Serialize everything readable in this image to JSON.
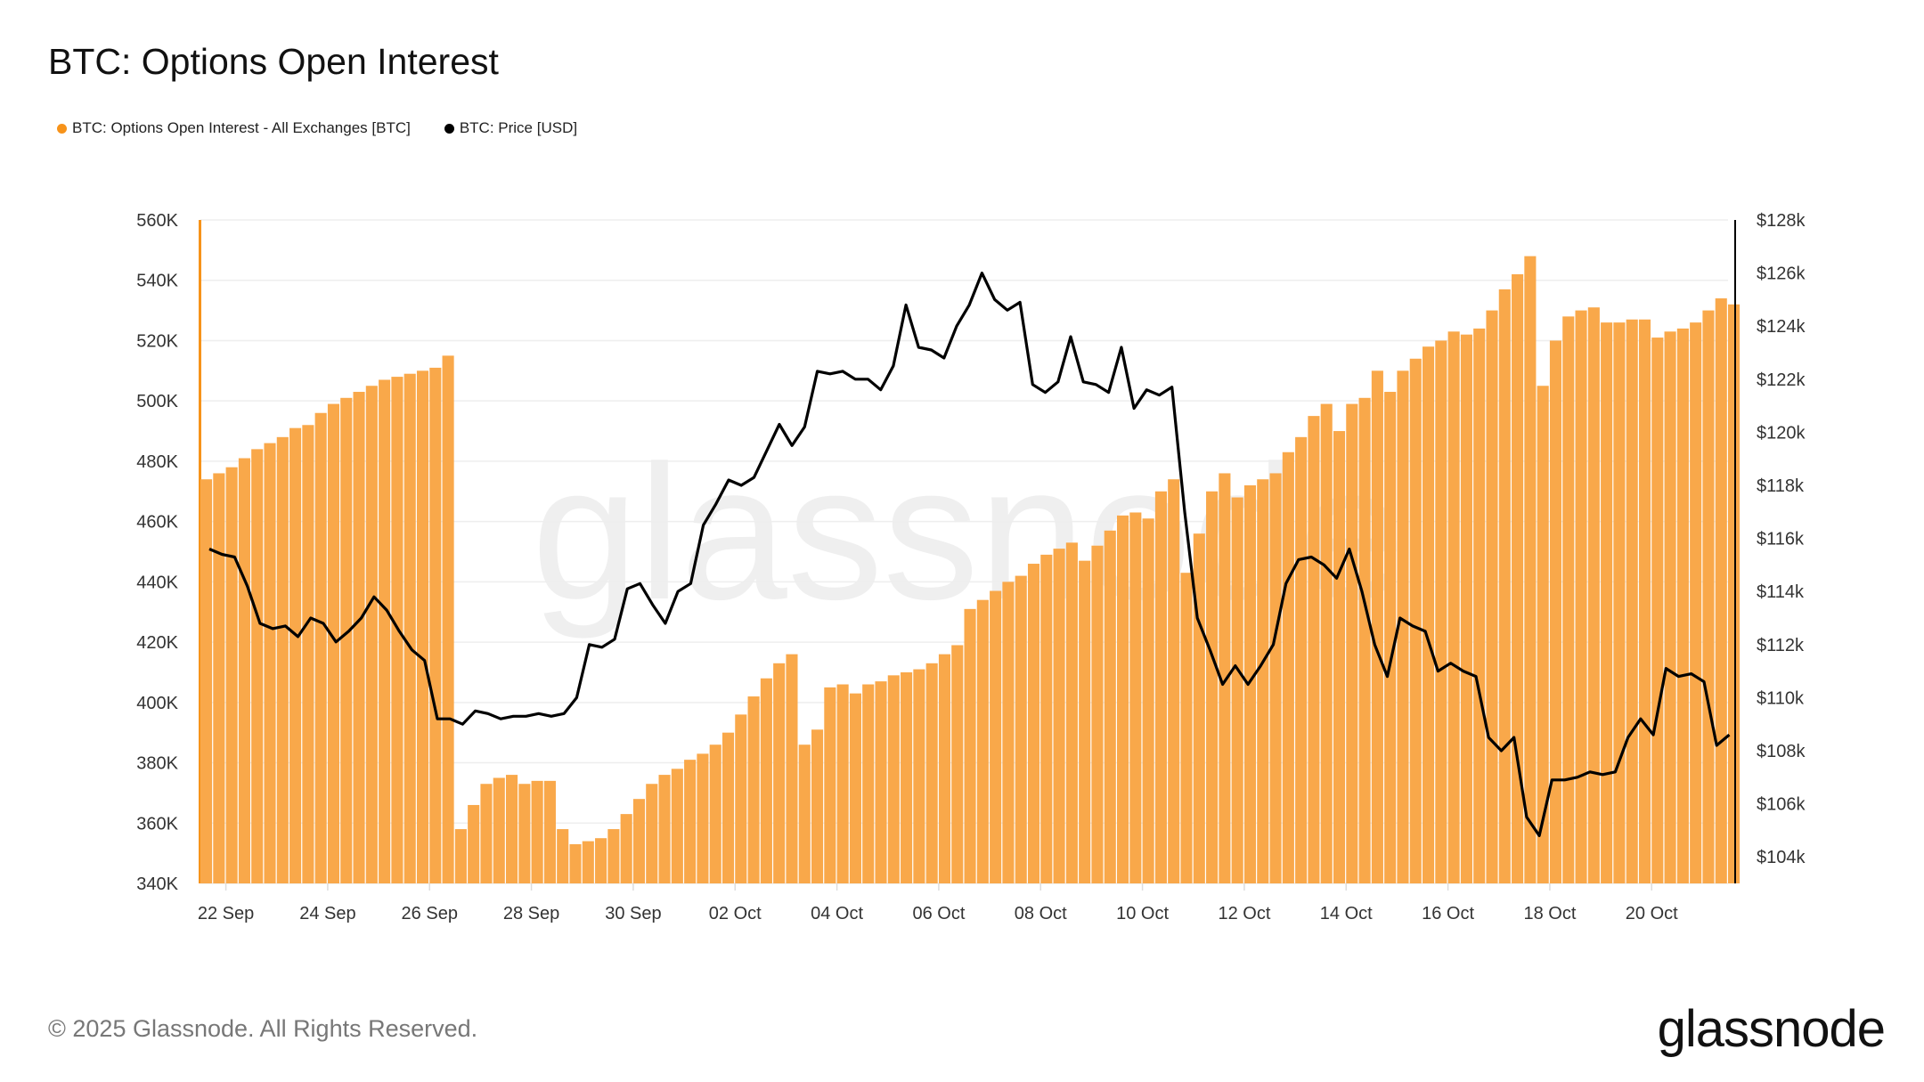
{
  "title": "BTC: Options Open Interest",
  "footer": "© 2025 Glassnode. All Rights Reserved.",
  "logo_text": "glassnode",
  "watermark_text": "glassnode",
  "colors": {
    "oi": "#f7931a",
    "oi_bar": "#f9a84a",
    "price": "#000000",
    "grid": "#eeeeee",
    "axis_text": "#333333"
  },
  "chart_data": {
    "type": "bar+line",
    "title": "BTC: Options Open Interest",
    "legend_position": "top-left",
    "grid": true,
    "legend": [
      {
        "name": "BTC: Options Open Interest - All Exchanges [BTC]",
        "color": "#f7931a"
      },
      {
        "name": "BTC: Price [USD]",
        "color": "#000000"
      }
    ],
    "y_left": {
      "range": [
        340000,
        560000
      ],
      "ticks": [
        "340K",
        "360K",
        "380K",
        "400K",
        "420K",
        "440K",
        "460K",
        "480K",
        "500K",
        "520K",
        "540K",
        "560K"
      ]
    },
    "y_right": {
      "range": [
        103000,
        128000
      ],
      "ticks": [
        "$104k",
        "$106k",
        "$108k",
        "$110k",
        "$112k",
        "$114k",
        "$116k",
        "$118k",
        "$120k",
        "$122k",
        "$124k",
        "$126k",
        "$128k"
      ]
    },
    "x_ticks": [
      {
        "date": "2025-09-22",
        "label": "22 Sep"
      },
      {
        "date": "2025-09-24",
        "label": "24 Sep"
      },
      {
        "date": "2025-09-26",
        "label": "26 Sep"
      },
      {
        "date": "2025-09-28",
        "label": "28 Sep"
      },
      {
        "date": "2025-09-30",
        "label": "30 Sep"
      },
      {
        "date": "2025-10-02",
        "label": "02 Oct"
      },
      {
        "date": "2025-10-04",
        "label": "04 Oct"
      },
      {
        "date": "2025-10-06",
        "label": "06 Oct"
      },
      {
        "date": "2025-10-08",
        "label": "08 Oct"
      },
      {
        "date": "2025-10-10",
        "label": "10 Oct"
      },
      {
        "date": "2025-10-12",
        "label": "12 Oct"
      },
      {
        "date": "2025-10-14",
        "label": "14 Oct"
      },
      {
        "date": "2025-10-16",
        "label": "16 Oct"
      },
      {
        "date": "2025-10-18",
        "label": "18 Oct"
      },
      {
        "date": "2025-10-20",
        "label": "20 Oct"
      }
    ],
    "x_range": [
      "2025-09-21T12:00",
      "2025-10-21T12:00"
    ],
    "series": [
      {
        "name": "BTC: Options Open Interest - All Exchanges [BTC]",
        "type": "bar",
        "axis": "left",
        "values": [
          474000,
          476000,
          478000,
          481000,
          484000,
          486000,
          488000,
          491000,
          492000,
          496000,
          499000,
          501000,
          503000,
          505000,
          507000,
          508000,
          509000,
          510000,
          511000,
          515000,
          358000,
          366000,
          373000,
          375000,
          376000,
          373000,
          374000,
          374000,
          358000,
          353000,
          354000,
          355000,
          358000,
          363000,
          368000,
          373000,
          376000,
          378000,
          381000,
          383000,
          386000,
          390000,
          396000,
          402000,
          408000,
          413000,
          416000,
          386000,
          391000,
          405000,
          406000,
          403000,
          406000,
          407000,
          409000,
          410000,
          411000,
          413000,
          416000,
          419000,
          431000,
          434000,
          437000,
          440000,
          442000,
          446000,
          449000,
          451000,
          453000,
          447000,
          452000,
          457000,
          462000,
          463000,
          461000,
          470000,
          474000,
          443000,
          456000,
          470000,
          476000,
          468000,
          472000,
          474000,
          476000,
          483000,
          488000,
          495000,
          499000,
          490000,
          499000,
          501000,
          510000,
          503000,
          510000,
          514000,
          518000,
          520000,
          523000,
          522000,
          524000,
          530000,
          537000,
          542000,
          548000,
          505000,
          520000,
          528000,
          530000,
          531000,
          526000,
          526000,
          527000,
          527000,
          521000,
          523000,
          524000,
          526000,
          530000,
          534000,
          532000
        ]
      },
      {
        "name": "BTC: Price [USD]",
        "type": "line",
        "axis": "right",
        "values": [
          115600,
          115400,
          115300,
          114200,
          112800,
          112600,
          112700,
          112300,
          113000,
          112800,
          112100,
          112500,
          113000,
          113800,
          113300,
          112500,
          111800,
          111400,
          109200,
          109200,
          109000,
          109500,
          109400,
          109200,
          109300,
          109300,
          109400,
          109300,
          109400,
          110000,
          112000,
          111900,
          112200,
          114100,
          114300,
          113500,
          112800,
          114000,
          114300,
          116500,
          117300,
          118200,
          118000,
          118300,
          119300,
          120300,
          119500,
          120200,
          122300,
          122200,
          122300,
          122000,
          122000,
          121600,
          122500,
          124800,
          123200,
          123100,
          122800,
          124000,
          124800,
          126000,
          125000,
          124600,
          124900,
          121800,
          121500,
          121900,
          123600,
          121900,
          121800,
          121500,
          123200,
          120900,
          121600,
          121400,
          121700,
          117000,
          113000,
          111800,
          110500,
          111200,
          110500,
          111200,
          112000,
          114300,
          115200,
          115300,
          115000,
          114500,
          115600,
          114000,
          112000,
          110800,
          113000,
          112700,
          112500,
          111000,
          111300,
          111000,
          110800,
          108500,
          108000,
          108500,
          105500,
          104800,
          106900,
          106900,
          107000,
          107200,
          107100,
          107200,
          108500,
          109200,
          108600,
          111100,
          110800,
          110900,
          110600,
          108200,
          108600
        ]
      }
    ]
  }
}
